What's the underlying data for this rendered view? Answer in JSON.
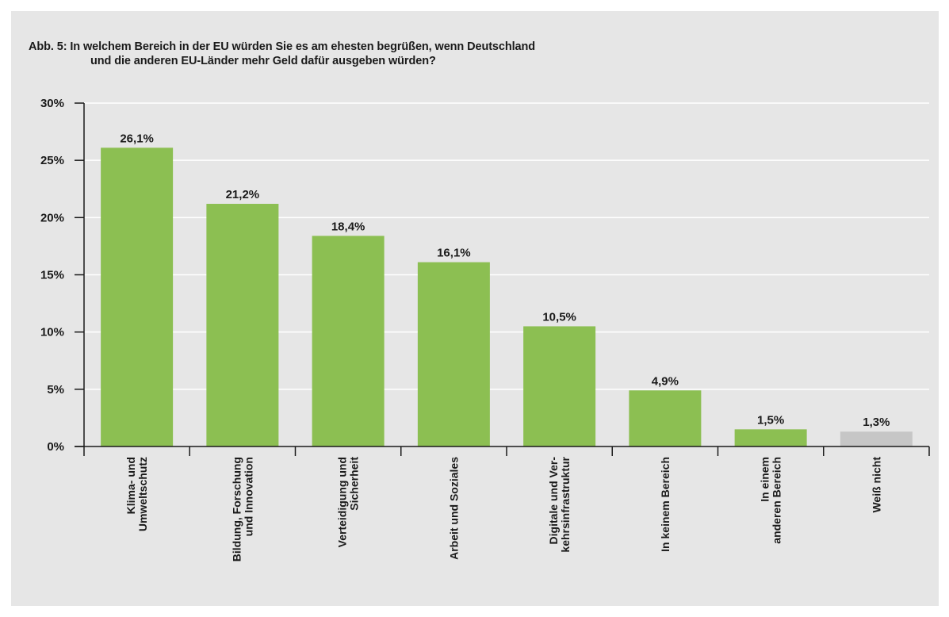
{
  "figure": {
    "title_line1": "Abb. 5: In welchem Bereich in der EU würden Sie es am ehesten begrüßen, wenn Deutschland",
    "title_line2": "und die anderen EU-Länder mehr Geld dafür ausgeben würden?"
  },
  "chart_data": {
    "type": "bar",
    "title": "Abb. 5: In welchem Bereich in der EU würden Sie es am ehesten begrüßen, wenn Deutschland und die anderen EU-Länder mehr Geld dafür ausgeben würden?",
    "categories": [
      [
        "Klima- und",
        "Umweltschutz"
      ],
      [
        "Bildung, Forschung",
        "und Innovation"
      ],
      [
        "Verteidigung und",
        "Sicherheit"
      ],
      [
        "Arbeit und Soziales"
      ],
      [
        "Digitale und Ver-",
        "kehrsinfrastruktur"
      ],
      [
        "In keinem Bereich"
      ],
      [
        "In einem",
        "anderen Bereich"
      ],
      [
        "Weiß nicht"
      ]
    ],
    "values": [
      26.1,
      21.2,
      18.4,
      16.1,
      10.5,
      4.9,
      1.5,
      1.3
    ],
    "value_labels": [
      "26,1%",
      "21,2%",
      "18,4%",
      "16,1%",
      "10,5%",
      "4,9%",
      "1,5%",
      "1,3%"
    ],
    "bar_colors": [
      "#8cbf52",
      "#8cbf52",
      "#8cbf52",
      "#8cbf52",
      "#8cbf52",
      "#8cbf52",
      "#8cbf52",
      "#c6c6c6"
    ],
    "ylim": [
      0,
      30
    ],
    "yticks": [
      0,
      5,
      10,
      15,
      20,
      25,
      30
    ],
    "ytick_labels": [
      "0%",
      "5%",
      "10%",
      "15%",
      "20%",
      "25%",
      "30%"
    ],
    "grid": true,
    "legend": "none",
    "xlabel": "",
    "ylabel": ""
  }
}
